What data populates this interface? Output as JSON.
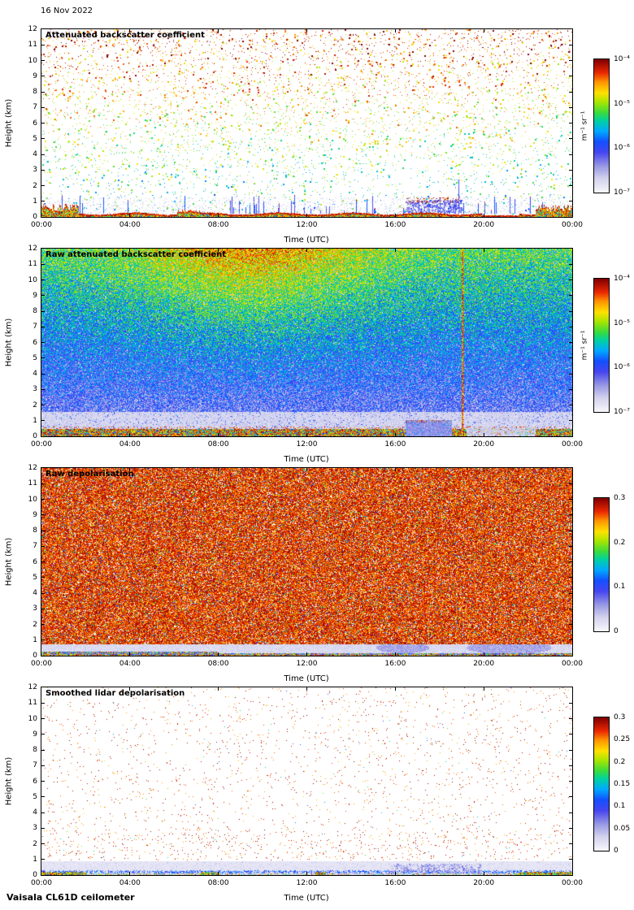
{
  "header": {
    "date": "16 Nov 2022"
  },
  "footer": {
    "instrument": "Vaisala CL61D ceilometer"
  },
  "colormap": {
    "stops": [
      [
        0.0,
        "#f6f6fb"
      ],
      [
        0.1,
        "#d4d4ee"
      ],
      [
        0.2,
        "#9696e4"
      ],
      [
        0.3,
        "#4646f0"
      ],
      [
        0.38,
        "#1450ff"
      ],
      [
        0.46,
        "#00aaff"
      ],
      [
        0.54,
        "#00d2a0"
      ],
      [
        0.6,
        "#3cdc3c"
      ],
      [
        0.68,
        "#aae600"
      ],
      [
        0.75,
        "#ffe100"
      ],
      [
        0.83,
        "#ff9600"
      ],
      [
        0.9,
        "#eb2800"
      ],
      [
        1.0,
        "#820000"
      ]
    ]
  },
  "chart_data": [
    {
      "type": "heatmap",
      "title": "Attenuated backscatter coefficient",
      "xlabel": "Time (UTC)",
      "ylabel": "Height (km)",
      "x_hours": [
        0,
        24
      ],
      "xticks": [
        "00:00",
        "04:00",
        "08:00",
        "12:00",
        "16:00",
        "20:00",
        "00:00"
      ],
      "ylim": [
        0,
        12
      ],
      "yticks": [
        0,
        1,
        2,
        3,
        4,
        5,
        6,
        7,
        8,
        9,
        10,
        11,
        12
      ],
      "colorbar": {
        "scale": "log",
        "range": [
          "1e-7",
          "1e-4"
        ],
        "ticks": [
          "10⁻⁴",
          "10⁻⁵",
          "10⁻⁶",
          "10⁻⁷"
        ],
        "unit": "m⁻¹ sr⁻¹"
      },
      "features": [
        "sparse noise speckle, values increasing with height (red/orange aloft, green/blue low)",
        "strong (red) surface aerosol layer below ~0.4 km, deeper at 00:00–02:00 and 22:00–24:00",
        "light lavender haze below ~1 km",
        "low-level cloud/precipitation streaks ~10:00–19:00 below ~1.5 km",
        "cluster of low clouds ~16:30–19:00 at 0.3–1 km with red tops"
      ],
      "render": {
        "mode": "sparse-backscatter",
        "seed": 11
      }
    },
    {
      "type": "heatmap",
      "title": "Raw attenuated backscatter coefficient",
      "xlabel": "Time (UTC)",
      "ylabel": "Height (km)",
      "x_hours": [
        0,
        24
      ],
      "xticks": [
        "00:00",
        "04:00",
        "08:00",
        "12:00",
        "16:00",
        "20:00",
        "00:00"
      ],
      "ylim": [
        0,
        12
      ],
      "yticks": [
        0,
        1,
        2,
        3,
        4,
        5,
        6,
        7,
        8,
        9,
        10,
        11,
        12
      ],
      "colorbar": {
        "scale": "log",
        "range": [
          "1e-7",
          "1e-4"
        ],
        "ticks": [
          "10⁻⁴",
          "10⁻⁵",
          "10⁻⁶",
          "10⁻⁷"
        ],
        "unit": "m⁻¹ sr⁻¹"
      },
      "features": [
        "dense speckle noise over whole profile",
        "noise level rises with height: orange/red patch aloft ~06:00–14:00 above ~8 km",
        "blue (weak) noise 2–6 km, light gray below ~1.5 km",
        "bright rainbow surface echo below ~0.5 km",
        "solid light-blue attenuated region ~16:30–18:30 below ~1 km",
        "narrow vertical bright stripe at ~19:00 through all heights"
      ],
      "render": {
        "mode": "dense-raw",
        "seed": 22
      }
    },
    {
      "type": "heatmap",
      "title": "Raw depolarisation",
      "xlabel": "Time (UTC)",
      "ylabel": "Height (km)",
      "x_hours": [
        0,
        24
      ],
      "xticks": [
        "00:00",
        "04:00",
        "08:00",
        "12:00",
        "16:00",
        "20:00",
        "00:00"
      ],
      "ylim": [
        0,
        12
      ],
      "yticks": [
        0,
        1,
        2,
        3,
        4,
        5,
        6,
        7,
        8,
        9,
        10,
        11,
        12
      ],
      "colorbar": {
        "scale": "linear",
        "range": [
          0,
          0.3
        ],
        "ticks": [
          "0.3",
          "0.2",
          "0.1",
          "0"
        ],
        "unit": ""
      },
      "features": [
        "saturated noisy depolarisation (~0.25–0.3, dark red/magenta) with white speckles above ~0.8 km",
        "low depolarisation (light lavender) below ~0.8 km",
        "colored speckle stripe at the surface",
        "slightly elevated light-blue patches ~16:00–22:00 at 0.2–0.8 km"
      ],
      "render": {
        "mode": "dense-depol",
        "seed": 33
      }
    },
    {
      "type": "heatmap",
      "title": "Smoothed lidar depolarisation",
      "xlabel": "Time (UTC)",
      "ylabel": "Height (km)",
      "x_hours": [
        0,
        24
      ],
      "xticks": [
        "00:00",
        "04:00",
        "08:00",
        "12:00",
        "16:00",
        "20:00",
        "00:00"
      ],
      "ylim": [
        0,
        12
      ],
      "yticks": [
        0,
        1,
        2,
        3,
        4,
        5,
        6,
        7,
        8,
        9,
        10,
        11,
        12
      ],
      "colorbar": {
        "scale": "linear",
        "range": [
          0,
          0.3
        ],
        "ticks": [
          "0.3",
          "0.25",
          "0.2",
          "0.15",
          "0.1",
          "0.05",
          "0"
        ],
        "unit": ""
      },
      "features": [
        "mostly empty (white) field with sparse dark-red/purple specks",
        "low-depolarisation lavender layer below ~0.9 km",
        "darker blue streak near 0.2 km",
        "enhanced colored surface returns 00:00–02:00, ~07:30, ~12:30 and 21:30–24:00",
        "light blue patches ~16:00–20:00 below ~0.7 km"
      ],
      "render": {
        "mode": "sparse-depol",
        "seed": 44
      }
    }
  ]
}
